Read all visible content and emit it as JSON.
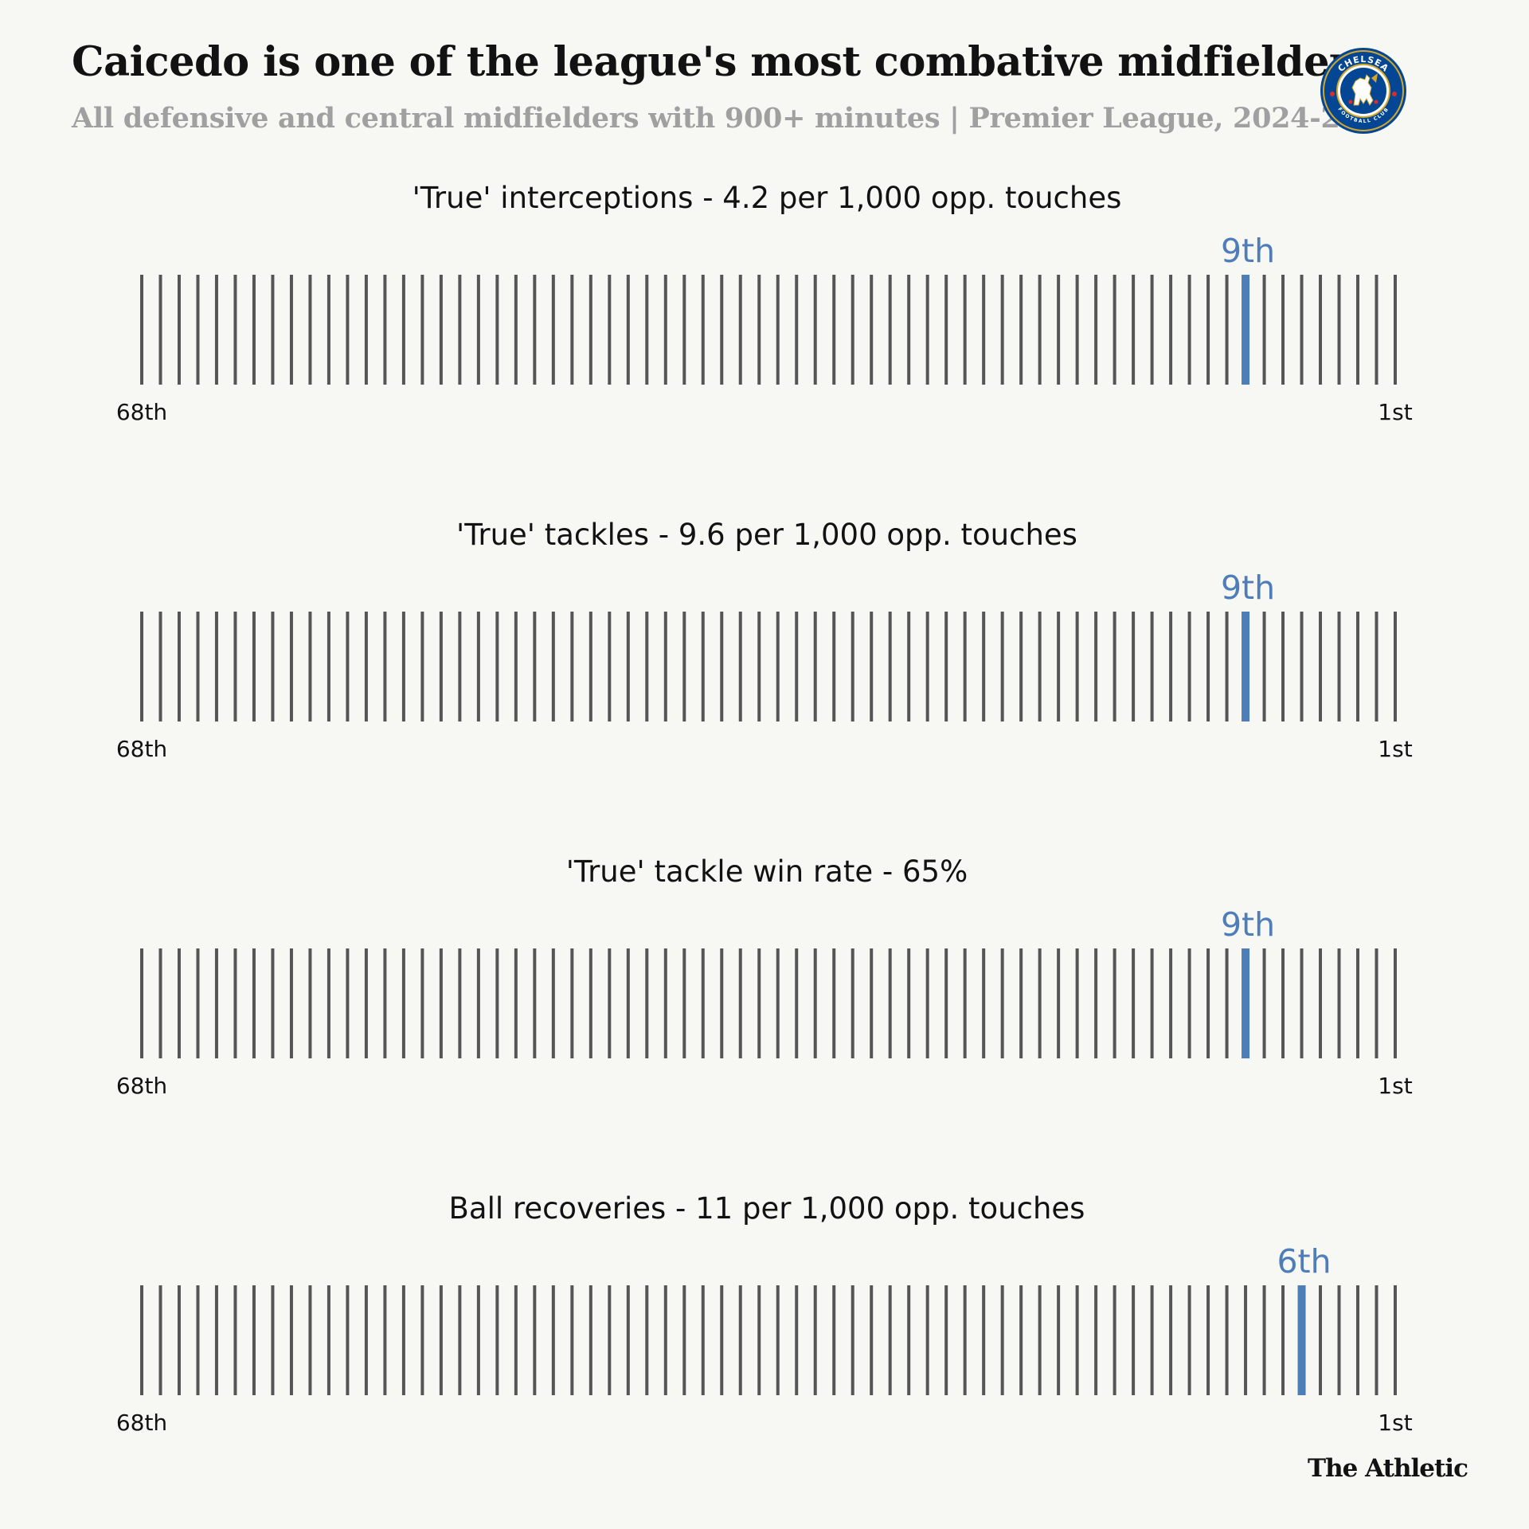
{
  "header": {
    "title": "Caicedo is one of the league's most combative midfielders",
    "subtitle": "All defensive and central midfielders with 900+ minutes | Premier League, 2024-25"
  },
  "crest": {
    "text_top": "CHELSEA",
    "text_bottom": "FOOTBALL CLUB",
    "colors": {
      "blue": "#034694",
      "gold": "#d4a72c",
      "red": "#dd2c2c"
    }
  },
  "colors": {
    "highlight": "#4f7db8",
    "tick": "#555555"
  },
  "chart_data": [
    {
      "type": "rank-strip",
      "title": "'True' interceptions - 4.2 per 1,000 opp. touches",
      "total_players": 68,
      "highlight_rank": 9,
      "highlight_label": "9th",
      "left_label": "68th",
      "right_label": "1st"
    },
    {
      "type": "rank-strip",
      "title": "'True' tackles - 9.6 per 1,000 opp. touches",
      "total_players": 68,
      "highlight_rank": 9,
      "highlight_label": "9th",
      "left_label": "68th",
      "right_label": "1st"
    },
    {
      "type": "rank-strip",
      "title": "'True' tackle win rate - 65%",
      "total_players": 68,
      "highlight_rank": 9,
      "highlight_label": "9th",
      "left_label": "68th",
      "right_label": "1st"
    },
    {
      "type": "rank-strip",
      "title": "Ball recoveries - 11 per 1,000 opp. touches",
      "total_players": 68,
      "highlight_rank": 6,
      "highlight_label": "6th",
      "left_label": "68th",
      "right_label": "1st"
    }
  ],
  "footer": {
    "brand": "The Athletic"
  }
}
